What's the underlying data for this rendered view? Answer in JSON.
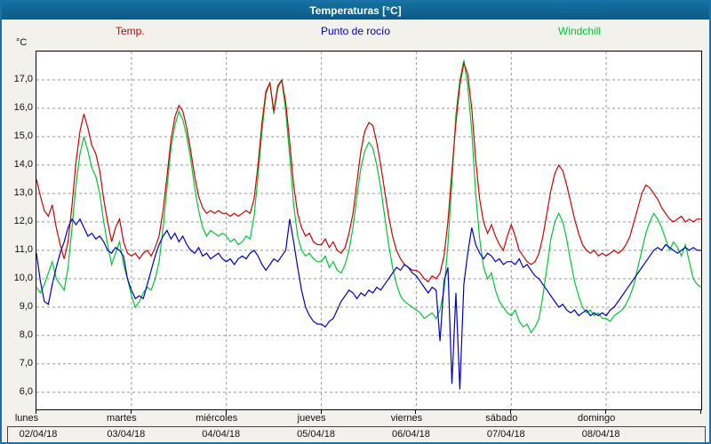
{
  "window": {
    "title": "Temperaturas [°C]"
  },
  "legend": [
    {
      "label": "Temp.",
      "color": "#d40000"
    },
    {
      "label": "Punto de rocío",
      "color": "#0000c8"
    },
    {
      "label": "Windchill",
      "color": "#00c832"
    }
  ],
  "axis": {
    "unit_label": "°C"
  },
  "chart_data": {
    "type": "line",
    "title": "Temperaturas [°C]",
    "x_unit": "hours",
    "x_range_hours": [
      0,
      168
    ],
    "ylim": [
      5.4,
      18.0
    ],
    "grid": "dashed",
    "legend_position": "top",
    "days": [
      {
        "name": "lunes",
        "date": "02/04/18"
      },
      {
        "name": "martes",
        "date": "03/04/18"
      },
      {
        "name": "miércoles",
        "date": "04/04/18"
      },
      {
        "name": "jueves",
        "date": "05/04/18"
      },
      {
        "name": "viernes",
        "date": "06/04/18"
      },
      {
        "name": "sábado",
        "date": "07/04/18"
      },
      {
        "name": "domingo",
        "date": "08/04/18"
      }
    ],
    "y_ticks": [
      {
        "value": 17,
        "label": "17,0"
      },
      {
        "value": 16,
        "label": "16,0"
      },
      {
        "value": 15,
        "label": "15,0"
      },
      {
        "value": 14,
        "label": "14,0"
      },
      {
        "value": 13,
        "label": "13,0"
      },
      {
        "value": 12,
        "label": "12,0"
      },
      {
        "value": 11,
        "label": "11,0"
      },
      {
        "value": 10,
        "label": "10,0"
      },
      {
        "value": 9,
        "label": "9,0"
      },
      {
        "value": 8,
        "label": "8,0"
      },
      {
        "value": 7,
        "label": "7,0"
      },
      {
        "value": 6,
        "label": "6,0"
      }
    ],
    "series": [
      {
        "name": "Temp.",
        "color": "#d40000",
        "values": [
          13.5,
          12.9,
          12.4,
          12.2,
          12.6,
          11.8,
          11.2,
          10.7,
          11.3,
          12.6,
          14.1,
          15.2,
          15.8,
          15.3,
          14.7,
          14.4,
          13.8,
          12.8,
          12.0,
          11.3,
          11.8,
          12.1,
          11.3,
          10.9,
          10.8,
          10.9,
          10.7,
          10.9,
          11.0,
          10.8,
          11.1,
          11.5,
          12.4,
          13.6,
          14.9,
          15.7,
          16.1,
          15.9,
          15.3,
          14.5,
          13.6,
          12.9,
          12.5,
          12.3,
          12.4,
          12.3,
          12.4,
          12.3,
          12.3,
          12.2,
          12.3,
          12.2,
          12.3,
          12.4,
          12.3,
          12.8,
          14.0,
          15.5,
          16.6,
          16.9,
          15.9,
          16.8,
          17.0,
          16.2,
          14.8,
          13.3,
          12.3,
          11.8,
          11.5,
          11.6,
          11.3,
          11.2,
          11.2,
          11.4,
          11.1,
          11.3,
          11.0,
          10.9,
          11.1,
          11.6,
          12.3,
          13.4,
          14.5,
          15.2,
          15.5,
          15.4,
          14.8,
          14.0,
          13.1,
          12.2,
          11.5,
          11.0,
          10.7,
          10.5,
          10.4,
          10.3,
          10.3,
          10.2,
          10.0,
          9.9,
          10.1,
          10.0,
          10.2,
          10.8,
          12.0,
          13.8,
          15.5,
          16.8,
          17.6,
          17.2,
          16.0,
          14.2,
          12.8,
          12.0,
          11.6,
          11.9,
          11.5,
          11.2,
          11.0,
          11.5,
          11.9,
          11.5,
          11.0,
          10.8,
          10.6,
          10.5,
          10.6,
          10.9,
          11.5,
          12.3,
          13.1,
          13.7,
          14.0,
          13.8,
          13.3,
          12.7,
          12.1,
          11.6,
          11.2,
          11.0,
          10.9,
          11.0,
          10.8,
          10.9,
          10.8,
          10.9,
          11.0,
          10.9,
          11.0,
          11.2,
          11.5,
          12.0,
          12.5,
          13.0,
          13.3,
          13.2,
          13.0,
          12.8,
          12.5,
          12.3,
          12.1,
          12.0,
          12.1,
          12.2,
          12.0,
          12.1,
          12.0,
          12.1,
          12.1
        ]
      },
      {
        "name": "Punto de rocío",
        "color": "#0000c8",
        "values": [
          10.9,
          9.9,
          9.2,
          9.1,
          9.8,
          10.4,
          10.9,
          11.3,
          11.8,
          12.1,
          11.9,
          12.1,
          11.8,
          11.5,
          11.6,
          11.4,
          11.5,
          11.3,
          11.0,
          10.9,
          11.1,
          11.0,
          10.8,
          10.0,
          9.6,
          9.3,
          9.4,
          9.3,
          9.8,
          10.3,
          10.8,
          11.2,
          11.5,
          11.7,
          11.4,
          11.6,
          11.3,
          11.5,
          11.2,
          11.0,
          10.9,
          11.1,
          10.8,
          10.9,
          10.7,
          10.8,
          10.9,
          10.7,
          10.6,
          10.7,
          10.5,
          10.7,
          10.8,
          10.7,
          10.9,
          11.0,
          10.8,
          10.5,
          10.3,
          10.5,
          10.7,
          10.6,
          10.8,
          11.0,
          12.1,
          11.3,
          10.4,
          9.6,
          9.0,
          8.7,
          8.5,
          8.4,
          8.4,
          8.3,
          8.5,
          8.6,
          8.9,
          9.2,
          9.4,
          9.6,
          9.5,
          9.3,
          9.5,
          9.4,
          9.6,
          9.5,
          9.7,
          9.6,
          9.8,
          10.0,
          10.2,
          10.4,
          10.3,
          10.5,
          10.4,
          10.2,
          10.1,
          9.9,
          9.7,
          9.5,
          9.7,
          9.6,
          7.8,
          9.9,
          10.4,
          6.3,
          9.5,
          6.1,
          9.8,
          10.9,
          11.8,
          11.2,
          10.9,
          10.7,
          10.9,
          10.8,
          10.6,
          10.7,
          10.5,
          10.6,
          10.6,
          10.5,
          10.7,
          10.4,
          10.5,
          10.3,
          10.1,
          10.0,
          9.8,
          9.6,
          9.4,
          9.2,
          9.0,
          9.1,
          8.9,
          8.8,
          8.9,
          8.7,
          8.8,
          8.9,
          8.7,
          8.8,
          8.7,
          8.8,
          8.7,
          8.9,
          9.0,
          9.2,
          9.4,
          9.6,
          9.8,
          10.0,
          10.2,
          10.4,
          10.6,
          10.8,
          11.0,
          11.1,
          11.0,
          11.2,
          11.1,
          11.0,
          10.9,
          11.0,
          11.1,
          11.0,
          11.1,
          11.0,
          11.0
        ]
      },
      {
        "name": "Windchill",
        "color": "#00c832",
        "values": [
          9.7,
          9.5,
          9.8,
          10.2,
          10.6,
          10.0,
          9.8,
          9.6,
          10.4,
          11.8,
          13.3,
          14.4,
          15.0,
          14.5,
          13.9,
          13.6,
          13.0,
          12.0,
          11.2,
          10.5,
          10.9,
          11.3,
          10.5,
          10.0,
          9.4,
          9.0,
          9.2,
          9.5,
          9.7,
          9.6,
          10.0,
          10.6,
          11.8,
          13.2,
          14.6,
          15.4,
          15.9,
          15.6,
          15.0,
          14.2,
          13.2,
          12.4,
          11.8,
          11.5,
          11.7,
          11.6,
          11.5,
          11.6,
          11.5,
          11.3,
          11.4,
          11.2,
          11.3,
          11.5,
          11.4,
          12.2,
          13.6,
          15.2,
          16.5,
          16.9,
          15.8,
          16.7,
          17.0,
          15.9,
          14.3,
          12.6,
          11.5,
          11.0,
          10.8,
          10.9,
          10.7,
          10.6,
          10.6,
          10.8,
          10.4,
          10.6,
          10.3,
          10.2,
          10.5,
          11.0,
          11.8,
          12.9,
          13.9,
          14.5,
          14.8,
          14.6,
          14.0,
          13.2,
          12.2,
          11.2,
          10.4,
          9.8,
          9.4,
          9.2,
          9.1,
          9.0,
          8.9,
          8.8,
          8.6,
          8.7,
          8.8,
          8.6,
          8.9,
          9.6,
          11.2,
          13.4,
          15.8,
          17.0,
          17.7,
          16.8,
          15.2,
          13.0,
          11.4,
          10.4,
          10.0,
          10.2,
          9.6,
          9.2,
          9.0,
          8.8,
          8.7,
          8.9,
          8.5,
          8.3,
          8.4,
          8.1,
          8.3,
          8.6,
          9.4,
          10.4,
          11.4,
          12.0,
          12.3,
          12.0,
          11.4,
          10.6,
          9.9,
          9.4,
          9.0,
          8.8,
          8.9,
          8.7,
          8.8,
          8.6,
          8.6,
          8.5,
          8.7,
          8.8,
          8.9,
          9.1,
          9.4,
          9.8,
          10.4,
          11.0,
          11.6,
          12.0,
          12.3,
          12.1,
          11.8,
          11.4,
          11.0,
          11.3,
          11.1,
          10.8,
          11.2,
          10.6,
          10.0,
          9.8,
          9.7
        ]
      }
    ]
  }
}
